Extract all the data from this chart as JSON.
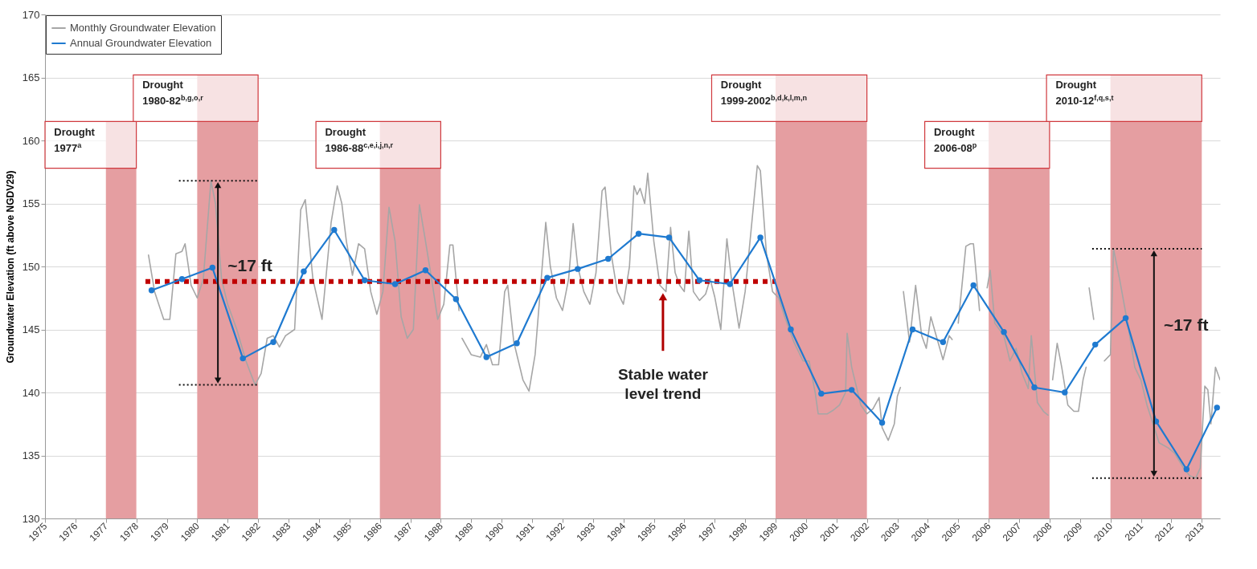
{
  "chart_data": {
    "type": "line",
    "ylabel": "Groundwater Elevation  (ft above NGDV29)",
    "xlim": [
      1975,
      2013.6
    ],
    "xticks": [
      1975,
      1976,
      1977,
      1978,
      1979,
      1980,
      1981,
      1982,
      1983,
      1984,
      1985,
      1986,
      1987,
      1988,
      1989,
      1990,
      1991,
      1992,
      1993,
      1994,
      1995,
      1996,
      1997,
      1998,
      1999,
      2000,
      2001,
      2002,
      2003,
      2004,
      2005,
      2006,
      2007,
      2008,
      2009,
      2010,
      2011,
      2012,
      2013
    ],
    "ylim": [
      130,
      170
    ],
    "yticks": [
      130,
      135,
      140,
      145,
      150,
      155,
      160,
      165,
      170
    ],
    "grid": "y",
    "legend": "top left",
    "series": [
      {
        "name": "Monthly Groundwater Elevation",
        "color": "#a6a6a6",
        "marker": "none",
        "line_style": "solid",
        "x": [
          1978.4,
          1978.6,
          1978.9,
          1979.1,
          1979.3,
          1979.5,
          1979.6,
          1979.8,
          1980.0,
          1980.2,
          1980.45,
          1980.6,
          1980.8,
          1981.0,
          1981.3,
          1981.6,
          1981.9,
          1982.1,
          1982.3,
          1982.5,
          1982.7,
          1982.9,
          1983.2,
          1983.4,
          1983.55,
          1983.8,
          1984.1,
          1984.4,
          1984.6,
          1984.75,
          1984.9,
          1985.1,
          1985.3,
          1985.5,
          1985.7,
          1985.9,
          1986.1,
          1986.3,
          1986.5,
          1986.7,
          1986.9,
          1987.1,
          1987.3,
          1987.5,
          1987.7,
          1987.9,
          1988.1,
          1988.3,
          1988.4,
          1988.6,
          1988.65,
          1988.7,
          1989.0,
          1989.3,
          1989.5,
          1989.7,
          1989.9,
          1990.1,
          1990.2,
          1990.4,
          1990.7,
          1990.9,
          1991.1,
          1991.3,
          1991.45,
          1991.6,
          1991.8,
          1992.0,
          1992.2,
          1992.35,
          1992.5,
          1992.7,
          1992.9,
          1993.1,
          1993.3,
          1993.4,
          1993.6,
          1993.8,
          1994.0,
          1994.2,
          1994.35,
          1994.45,
          1994.55,
          1994.7,
          1994.8,
          1995.0,
          1995.2,
          1995.4,
          1995.55,
          1995.7,
          1995.85,
          1996.0,
          1996.15,
          1996.3,
          1996.5,
          1996.7,
          1996.85,
          1997.0,
          1997.2,
          1997.4,
          1997.55,
          1997.8,
          1998.0,
          1998.2,
          1998.4,
          1998.5,
          1998.7,
          1998.9,
          1999.1,
          1999.3,
          1999.6,
          1999.9,
          2000.1,
          2000.3,
          2000.4,
          2000.7,
          2000.9,
          2001.1,
          2001.3,
          2001.35,
          2001.5,
          2001.8,
          2002.0,
          2002.2,
          2002.4,
          2002.5,
          2002.7,
          2002.9,
          2003.0,
          2003.1,
          2003.15,
          2003.2,
          2003.4,
          2003.6,
          2003.8,
          2003.95,
          2004.1,
          2004.3,
          2004.5,
          2004.7,
          2004.8,
          2004.9,
          2005.0,
          2005.25,
          2005.4,
          2005.5,
          2005.7,
          2005.85,
          2005.95,
          2006.05,
          2006.2,
          2006.5,
          2006.7,
          2006.9,
          2007.1,
          2007.3,
          2007.4,
          2007.6,
          2007.8,
          2007.95,
          2008.02,
          2008.1,
          2008.25,
          2008.4,
          2008.6,
          2008.8,
          2008.95,
          2009.1,
          2009.2,
          2009.25,
          2009.3,
          2009.45,
          2009.6,
          2009.8,
          2010.0,
          2010.1,
          2010.3,
          2010.6,
          2010.8,
          2011.0,
          2011.2,
          2011.4,
          2011.6,
          2011.9,
          2012.1,
          2012.4,
          2012.6,
          2012.8,
          2012.95,
          2013.1,
          2013.2,
          2013.3,
          2013.45,
          2013.6
        ],
        "values": [
          150.9,
          148,
          145.8,
          145.8,
          151,
          151.2,
          151.8,
          148.5,
          147.5,
          149,
          156.8,
          155,
          149,
          147,
          145,
          142.5,
          140.6,
          141.5,
          144.3,
          144.5,
          143.6,
          144.5,
          145,
          154.5,
          155.3,
          149,
          145.8,
          153.5,
          156.4,
          155,
          152,
          149.3,
          151.8,
          151.4,
          148,
          146.2,
          148,
          154.7,
          152,
          146,
          144.3,
          145,
          154.9,
          152,
          149,
          145.8,
          147,
          151.7,
          151.7,
          146.5,
          null,
          144.3,
          143,
          142.8,
          143.8,
          142.2,
          142.2,
          148,
          148.5,
          144,
          141,
          140.1,
          143,
          149,
          153.5,
          150,
          147.5,
          146.5,
          149,
          153.4,
          150,
          148,
          147,
          149.5,
          156,
          156.3,
          151,
          148,
          147,
          150,
          156.4,
          155.7,
          156.2,
          155,
          157.4,
          152,
          148.5,
          148,
          153.1,
          149.5,
          148.5,
          148,
          152.8,
          148,
          147.3,
          147.8,
          149,
          147.6,
          145,
          152.2,
          149,
          145.1,
          148,
          153,
          158,
          157.6,
          151,
          148,
          147.5,
          146,
          144,
          142.5,
          142.5,
          140,
          138.3,
          138.3,
          138.6,
          139,
          140,
          144.7,
          142,
          139,
          138.3,
          138.7,
          139.6,
          137.2,
          136.2,
          137.5,
          139.7,
          140.4,
          null,
          148,
          144,
          148.5,
          144.5,
          143.5,
          146,
          144.3,
          142.6,
          144.5,
          144.2,
          null,
          145.5,
          151.6,
          151.8,
          151.8,
          146.5,
          null,
          148.3,
          149.7,
          145.5,
          144.5,
          142.5,
          143.5,
          141.5,
          140.3,
          144.5,
          139.2,
          138.5,
          138.2,
          null,
          141,
          143.9,
          142,
          139,
          138.5,
          138.5,
          141,
          142,
          null,
          148.3,
          145.8,
          null,
          142.5,
          143,
          151.4,
          149,
          145,
          142,
          141,
          139,
          137.5,
          136,
          135.6,
          135.2,
          134,
          133.4,
          133.2,
          134,
          140.5,
          140.2,
          137.5,
          142,
          141
        ]
      },
      {
        "color": "#c00000",
        "marker": "none",
        "line_style": "dotted",
        "x": [
          1978.3,
          1999.0
        ],
        "values": [
          148.8,
          148.8
        ]
      },
      {
        "name": "Annual Groundwater Elevation",
        "color": "#1f7ad0",
        "marker": "circle",
        "line_style": "solid",
        "x": [
          1978.5,
          1979.5,
          1980.5,
          1981.5,
          1982.5,
          1983.5,
          1984.5,
          1985.5,
          1986.5,
          1987.5,
          1988.5,
          1989.5,
          1990.5,
          1991.5,
          1992.5,
          1993.5,
          1994.5,
          1995.5,
          1996.5,
          1997.5,
          1998.5,
          1999.5,
          2000.5,
          2001.5,
          2002.5,
          2003.5,
          2004.5,
          2005.5,
          2006.5,
          2007.5,
          2008.5,
          2009.5,
          2010.5,
          2011.5,
          2012.5,
          2013.5
        ],
        "values": [
          148.1,
          149.0,
          149.9,
          142.7,
          144.0,
          149.6,
          152.9,
          148.9,
          148.6,
          149.7,
          147.4,
          142.8,
          143.9,
          149.1,
          149.8,
          150.6,
          152.6,
          152.3,
          148.9,
          148.6,
          152.3,
          145.0,
          139.9,
          140.2,
          137.6,
          145.0,
          144.0,
          148.5,
          144.8,
          140.4,
          140.0,
          143.8,
          145.9,
          137.7,
          133.9,
          138.8
        ]
      }
    ],
    "bands": [
      {
        "axis": "x",
        "from": 1977,
        "to": 1978,
        "label": "Drought 1977$^{a}$",
        "color": "#e59ea1"
      },
      {
        "axis": "x",
        "from": 1980,
        "to": 1982,
        "label": "Drought 1980-82$^{b,g,o,r}$",
        "color": "#e59ea1"
      },
      {
        "axis": "x",
        "from": 1986,
        "to": 1988,
        "label": "Drought 1986-88$^{c,e,i,j,n,r}$",
        "color": "#e59ea1"
      },
      {
        "axis": "x",
        "from": 1999,
        "to": 2002,
        "label": "Drought 1999-2002$^{b,d,k,l,m,n}$",
        "color": "#e59ea1"
      },
      {
        "axis": "x",
        "from": 2006,
        "to": 2008,
        "label": "Drought 2006-08$^{p}$",
        "color": "#e59ea1"
      },
      {
        "axis": "x",
        "from": 2010,
        "to": 2013,
        "label": "Drought 2010-12$^{f,q,s,t}$",
        "color": "#e59ea1"
      }
    ],
    "annotations": [
      "~17 ft",
      "Stable water level trend",
      "~17 ft"
    ]
  }
}
